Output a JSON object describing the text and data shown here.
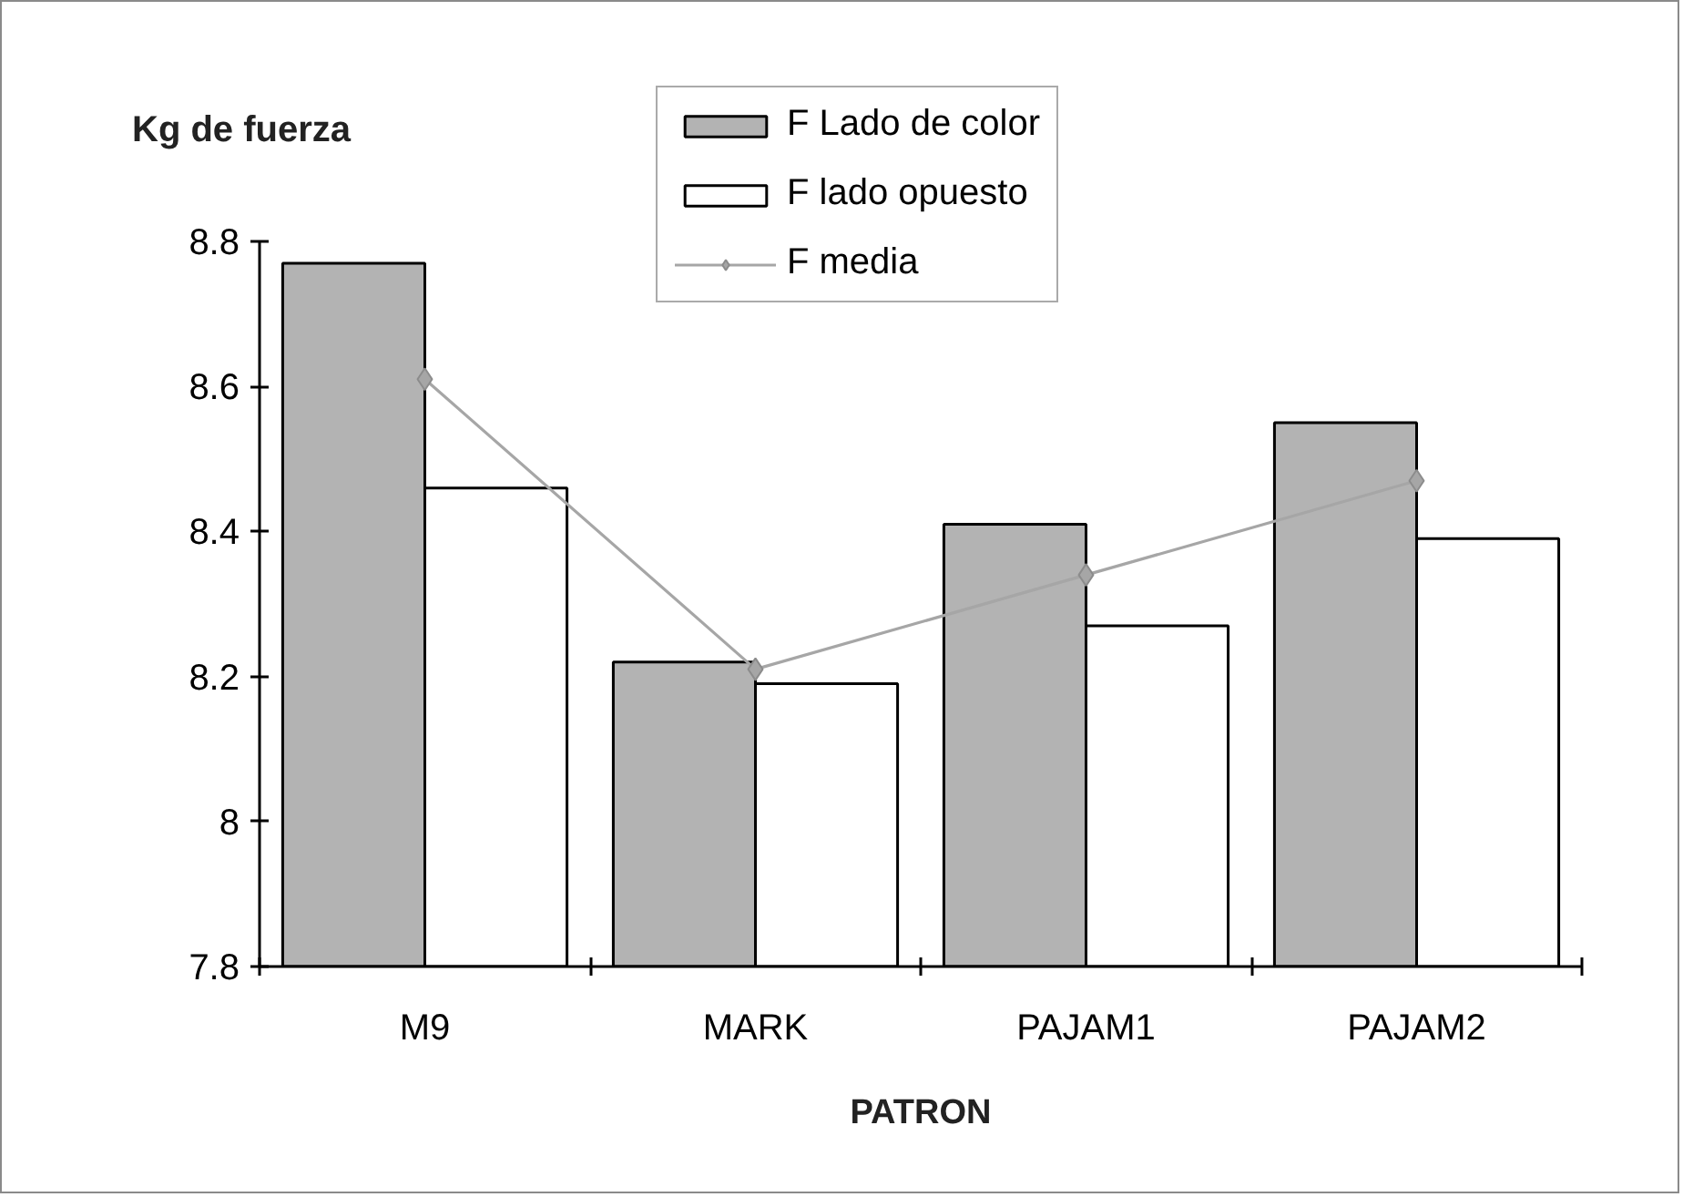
{
  "chart_data": {
    "type": "bar",
    "ylabel": "Kg de fuerza",
    "xlabel": "PATRON",
    "categories": [
      "M9",
      "MARK",
      "PAJAM1",
      "PAJAM2"
    ],
    "series": [
      {
        "name": "F Lado de color",
        "color": "#b3b3b3",
        "values": [
          8.77,
          8.22,
          8.41,
          8.55
        ]
      },
      {
        "name": "F lado opuesto",
        "color": "#ffffff",
        "values": [
          8.46,
          8.19,
          8.27,
          8.39
        ]
      },
      {
        "name": "F media",
        "type": "line",
        "color": "#a6a6a6",
        "marker": "diamond",
        "values": [
          8.61,
          8.21,
          8.34,
          8.47
        ]
      }
    ],
    "ylim": [
      7.8,
      8.8
    ],
    "yticks": [
      7.8,
      8,
      8.2,
      8.4,
      8.6,
      8.8
    ],
    "grid": false,
    "legend": "top"
  }
}
